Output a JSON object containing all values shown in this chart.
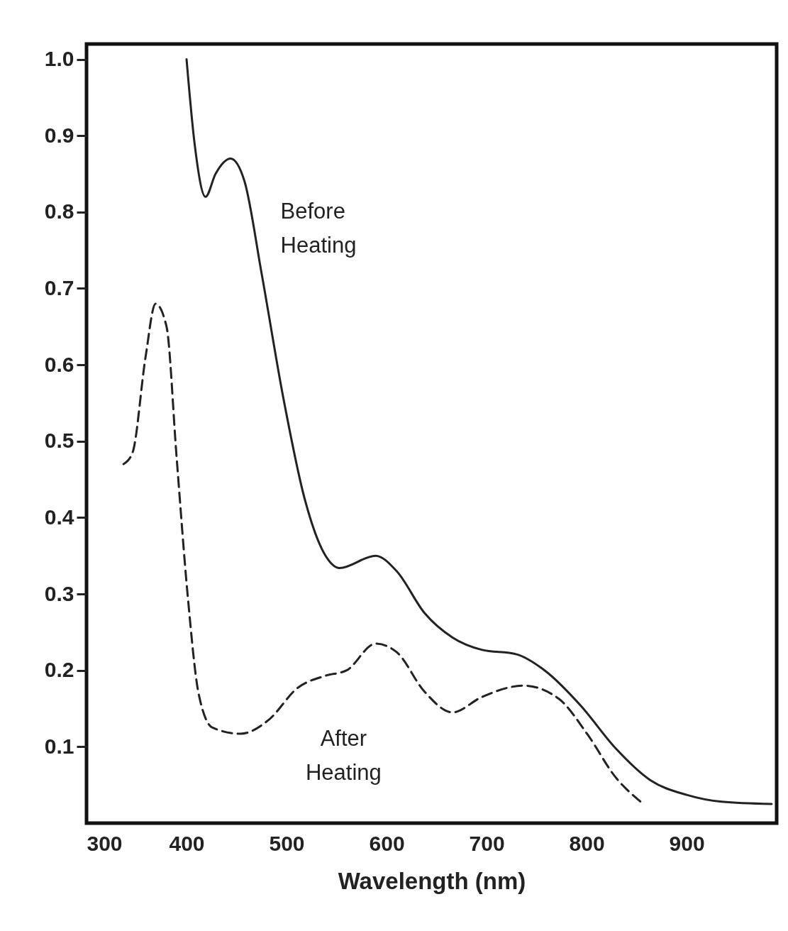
{
  "chart_data": {
    "type": "line",
    "xlabel": "Wavelength (nm)",
    "xlim": [
      300,
      990
    ],
    "ylim": [
      0,
      1.02
    ],
    "xticks": [
      300,
      400,
      500,
      600,
      700,
      800,
      900
    ],
    "yticks": [
      0.1,
      0.2,
      0.3,
      0.4,
      0.5,
      0.6,
      0.7,
      0.8,
      0.9,
      {
        "value": 1.0,
        "label": "1.0"
      }
    ],
    "grid": false,
    "marker": "none",
    "series": [
      {
        "name": "Before Heating",
        "color": "#222222",
        "line_style": "solid",
        "x": [
          400,
          408,
          419,
          429,
          444,
          458,
          475,
          497,
          518,
          539,
          553,
          589,
          610,
          638,
          666,
          695,
          730,
          758,
          794,
          829,
          864,
          900,
          935,
          985
        ],
        "values": [
          1.0,
          0.89,
          0.82,
          0.85,
          0.87,
          0.84,
          0.72,
          0.555,
          0.425,
          0.35,
          0.334,
          0.35,
          0.33,
          0.275,
          0.243,
          0.227,
          0.221,
          0.2,
          0.154,
          0.098,
          0.056,
          0.037,
          0.028,
          0.025
        ]
      },
      {
        "name": "After Heating",
        "color": "#222222",
        "line_style": "dashed",
        "x": [
          337,
          346,
          359,
          369,
          380,
          390,
          401,
          412,
          426,
          454,
          482,
          511,
          539,
          560,
          589,
          610,
          638,
          666,
          695,
          737,
          772,
          801,
          829,
          854
        ],
        "values": [
          0.47,
          0.485,
          0.61,
          0.68,
          0.65,
          0.48,
          0.3,
          0.17,
          0.125,
          0.117,
          0.135,
          0.177,
          0.193,
          0.2,
          0.235,
          0.224,
          0.172,
          0.145,
          0.165,
          0.18,
          0.163,
          0.116,
          0.06,
          0.028
        ]
      }
    ]
  }
}
